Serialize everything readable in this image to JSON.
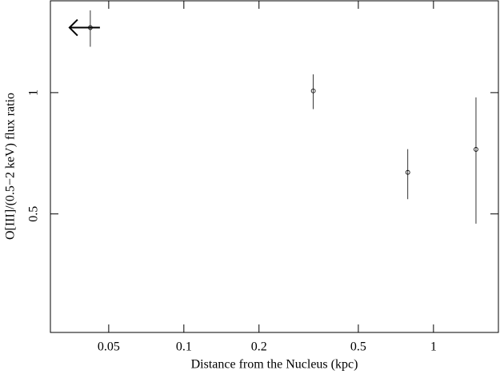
{
  "chart_data": {
    "type": "scatter",
    "xlabel": "Distance from the Nucleus (kpc)",
    "ylabel": "O[III]/(0.5−2 keV) flux ratio",
    "x": [
      0.0422,
      0.33,
      0.789,
      1.48
    ],
    "y": [
      1.45,
      1.01,
      0.634,
      0.723
    ],
    "yerr": [
      0.15,
      0.1,
      0.09,
      0.25
    ],
    "x_upper_limit": [
      true,
      false,
      false,
      false
    ],
    "color": "#000000",
    "xscale": "log",
    "yscale": "log",
    "xlim": [
      0.0292,
      1.82
    ],
    "ylim": [
      0.254,
      1.69
    ],
    "xticks": [
      0.05,
      0.1,
      0.2,
      0.5,
      1
    ],
    "yticks": [
      0.5,
      1
    ]
  }
}
